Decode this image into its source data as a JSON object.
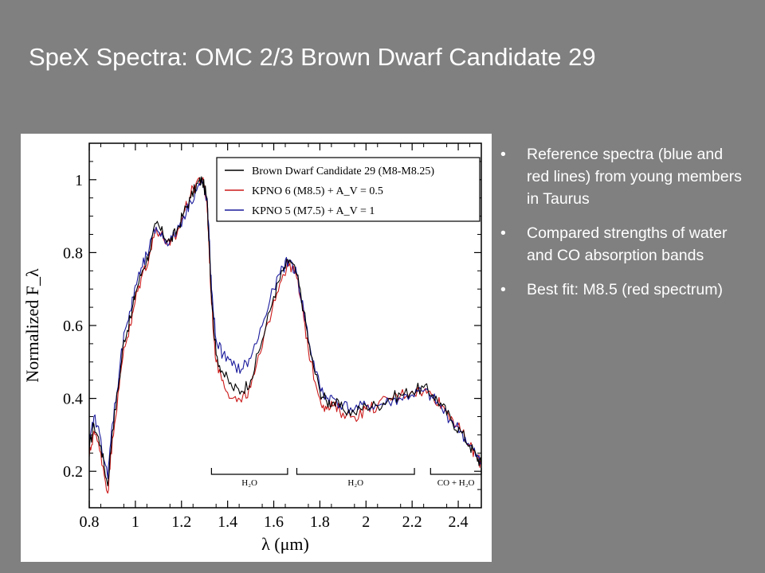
{
  "slide": {
    "title": "SpeX Spectra: OMC 2/3 Brown Dwarf Candidate 29",
    "bullets": [
      "Reference spectra (blue and red lines) from young members in Taurus",
      "Compared strengths of water and CO absorption bands",
      "Best fit: M8.5 (red spectrum)"
    ]
  },
  "colors": {
    "background": "#808080",
    "text": "#ffffff",
    "black_series": "#000000",
    "red_series": "#cc1a1a",
    "blue_series": "#1a1a9c"
  },
  "chart_data": {
    "type": "line",
    "title": "",
    "xlabel": "λ (μm)",
    "ylabel": "Normalized F_λ",
    "xlim": [
      0.8,
      2.5
    ],
    "ylim": [
      0.1,
      1.1
    ],
    "x_ticks": [
      0.8,
      1,
      1.2,
      1.4,
      1.6,
      1.8,
      2,
      2.2,
      2.4
    ],
    "y_ticks": [
      0.2,
      0.4,
      0.6,
      0.8,
      1
    ],
    "x_tick_labels": [
      "0.8",
      "1",
      "1.2",
      "1.4",
      "1.6",
      "1.8",
      "2",
      "2.2",
      "2.4"
    ],
    "y_tick_labels": [
      "0.2",
      "0.4",
      "0.6",
      "0.8",
      "1"
    ],
    "legend_position": "top-right",
    "series": [
      {
        "name": "Brown Dwarf Candidate 29 (M8-M8.25)",
        "color": "#000000",
        "x": [
          0.8,
          0.82,
          0.85,
          0.88,
          0.9,
          0.93,
          0.95,
          0.98,
          1.0,
          1.03,
          1.06,
          1.09,
          1.12,
          1.15,
          1.18,
          1.21,
          1.24,
          1.27,
          1.29,
          1.31,
          1.32,
          1.33,
          1.35,
          1.38,
          1.42,
          1.46,
          1.5,
          1.55,
          1.6,
          1.64,
          1.67,
          1.7,
          1.73,
          1.76,
          1.8,
          1.83,
          1.86,
          1.9,
          1.95,
          2.0,
          2.05,
          2.1,
          2.15,
          2.2,
          2.25,
          2.29,
          2.33,
          2.37,
          2.41,
          2.45,
          2.48,
          2.5
        ],
        "y": [
          0.26,
          0.33,
          0.27,
          0.16,
          0.31,
          0.45,
          0.56,
          0.62,
          0.69,
          0.75,
          0.8,
          0.88,
          0.85,
          0.83,
          0.86,
          0.91,
          0.95,
          0.99,
          1.0,
          0.95,
          0.83,
          0.68,
          0.52,
          0.47,
          0.43,
          0.42,
          0.45,
          0.56,
          0.68,
          0.75,
          0.78,
          0.74,
          0.64,
          0.52,
          0.42,
          0.39,
          0.39,
          0.37,
          0.36,
          0.38,
          0.38,
          0.4,
          0.41,
          0.42,
          0.43,
          0.41,
          0.38,
          0.34,
          0.31,
          0.27,
          0.24,
          0.22
        ]
      },
      {
        "name": "KPNO 6 (M8.5) + A_V = 0.5",
        "color": "#cc1a1a",
        "x": [
          0.8,
          0.82,
          0.85,
          0.88,
          0.9,
          0.93,
          0.95,
          0.98,
          1.0,
          1.03,
          1.06,
          1.09,
          1.12,
          1.15,
          1.18,
          1.21,
          1.24,
          1.27,
          1.29,
          1.31,
          1.32,
          1.33,
          1.35,
          1.38,
          1.42,
          1.46,
          1.5,
          1.55,
          1.6,
          1.64,
          1.67,
          1.7,
          1.73,
          1.76,
          1.8,
          1.83,
          1.86,
          1.9,
          1.95,
          2.0,
          2.05,
          2.1,
          2.15,
          2.2,
          2.25,
          2.29,
          2.33,
          2.37,
          2.41,
          2.45,
          2.48,
          2.5
        ],
        "y": [
          0.24,
          0.31,
          0.25,
          0.14,
          0.29,
          0.43,
          0.54,
          0.6,
          0.67,
          0.74,
          0.79,
          0.87,
          0.84,
          0.82,
          0.85,
          0.91,
          0.96,
          1.0,
          1.0,
          0.94,
          0.81,
          0.66,
          0.5,
          0.45,
          0.4,
          0.39,
          0.43,
          0.54,
          0.67,
          0.74,
          0.77,
          0.73,
          0.62,
          0.5,
          0.4,
          0.37,
          0.38,
          0.36,
          0.35,
          0.37,
          0.38,
          0.4,
          0.41,
          0.42,
          0.42,
          0.41,
          0.38,
          0.35,
          0.31,
          0.27,
          0.24,
          0.22
        ]
      },
      {
        "name": "KPNO 5 (M7.5) + A_V = 1",
        "color": "#1a1a9c",
        "x": [
          0.8,
          0.82,
          0.85,
          0.88,
          0.9,
          0.93,
          0.95,
          0.98,
          1.0,
          1.03,
          1.06,
          1.09,
          1.12,
          1.15,
          1.18,
          1.21,
          1.24,
          1.27,
          1.29,
          1.31,
          1.32,
          1.33,
          1.35,
          1.38,
          1.42,
          1.46,
          1.5,
          1.55,
          1.6,
          1.64,
          1.67,
          1.7,
          1.73,
          1.76,
          1.8,
          1.83,
          1.86,
          1.9,
          1.95,
          2.0,
          2.05,
          2.1,
          2.15,
          2.2,
          2.25,
          2.29,
          2.33,
          2.37,
          2.41,
          2.45,
          2.48,
          2.5
        ],
        "y": [
          0.27,
          0.35,
          0.29,
          0.18,
          0.33,
          0.47,
          0.58,
          0.64,
          0.71,
          0.76,
          0.81,
          0.87,
          0.84,
          0.83,
          0.86,
          0.9,
          0.94,
          0.98,
          0.99,
          0.95,
          0.84,
          0.7,
          0.56,
          0.52,
          0.49,
          0.48,
          0.51,
          0.6,
          0.7,
          0.76,
          0.78,
          0.74,
          0.64,
          0.53,
          0.43,
          0.4,
          0.4,
          0.38,
          0.37,
          0.38,
          0.38,
          0.39,
          0.4,
          0.41,
          0.42,
          0.4,
          0.37,
          0.34,
          0.31,
          0.27,
          0.24,
          0.22
        ]
      }
    ],
    "annotations": [
      {
        "label": "H₂O",
        "x_start": 1.33,
        "x_end": 1.66
      },
      {
        "label": "H₂O",
        "x_start": 1.7,
        "x_end": 2.21
      },
      {
        "label": "CO + H₂O",
        "x_start": 2.28,
        "x_end": 2.5
      }
    ]
  }
}
